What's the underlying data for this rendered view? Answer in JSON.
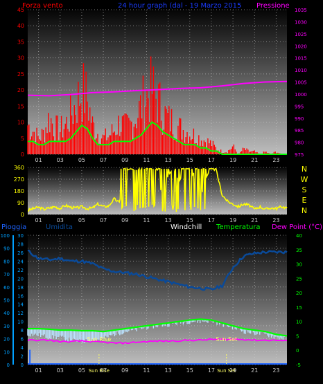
{
  "colors": {
    "wind": "#ff0000",
    "gust_fill": "#ff0000",
    "avg": "#00ff00",
    "pressure": "#ff00ff",
    "direction": "#ffff00",
    "rain": "#1e64ff",
    "humidity": "#0a4a99",
    "windchill": "#bbe3ff",
    "temperature": "#00ff00",
    "dewpoint": "#ff00ff",
    "sun": "#ffff66",
    "axis_left": "#00a0ff",
    "axis_right": "#00ff00"
  },
  "x_hours": [
    "01",
    "03",
    "05",
    "07",
    "09",
    "11",
    "13",
    "15",
    "17",
    "19",
    "21",
    "23"
  ],
  "header": {
    "left": "Forza vento",
    "center": "24 hour graph (dal - 19 Marzo 2015",
    "right": "Pressione"
  },
  "legend": {
    "pioggia": "Pioggia",
    "umidita": "Umidita",
    "windchill": "Windchill",
    "temperatura": "Temperatura",
    "dewpoint": "Dew Point (°C)"
  },
  "compass": [
    "N",
    "W",
    "S",
    "E",
    "N"
  ],
  "sun": {
    "rise_label": "Sun Rise",
    "set_label": "Sun Set",
    "rise_hour": 6.6,
    "set_hour": 18.4
  },
  "chart_data": [
    {
      "type": "bar",
      "name": "wind",
      "xlim": [
        0,
        24
      ],
      "ylim_left": [
        0,
        45
      ],
      "ylim_right": [
        975,
        1035
      ],
      "yticks_left": [
        0,
        5,
        10,
        15,
        20,
        25,
        30,
        35,
        40,
        45
      ],
      "yticks_right": [
        975,
        980,
        985,
        990,
        995,
        1000,
        1005,
        1010,
        1015,
        1020,
        1025,
        1030,
        1035
      ],
      "grid": true,
      "gust_hours": [
        0,
        0.5,
        1,
        1.5,
        2,
        2.5,
        3,
        3.5,
        4,
        4.5,
        5,
        5.5,
        6,
        6.5,
        7,
        7.5,
        8,
        8.5,
        9,
        9.5,
        10,
        10.5,
        11,
        11.5,
        12,
        12.5,
        13,
        13.5,
        14,
        14.5,
        15,
        15.5,
        16,
        16.5,
        17,
        17.5,
        18,
        18.5,
        19,
        19.5,
        20,
        20.5,
        21,
        21.5,
        22,
        22.5,
        23,
        23.5,
        24
      ],
      "gust_values": [
        11,
        9,
        6,
        8,
        14,
        10,
        9,
        11,
        15,
        19,
        24,
        21,
        11,
        8,
        6,
        7,
        9,
        12,
        10,
        11,
        14,
        18,
        22,
        24,
        21,
        16,
        13,
        12,
        10,
        9,
        8,
        7,
        6,
        5,
        4,
        2,
        1,
        1,
        3,
        0,
        2,
        1,
        1,
        0,
        1,
        0,
        1,
        0,
        0
      ],
      "avg_values": [
        4,
        4,
        3,
        3,
        4,
        4,
        4,
        4,
        5,
        7,
        9,
        8,
        5,
        3,
        3,
        3,
        4,
        4,
        4,
        4,
        5,
        6,
        8,
        10,
        9,
        7,
        6,
        5,
        4,
        3,
        3,
        3,
        2,
        2,
        1,
        1,
        0,
        0,
        0,
        0,
        0,
        0,
        0,
        0,
        0,
        0,
        0,
        0,
        0
      ],
      "pressure_hours": [
        0,
        2,
        4,
        6,
        8,
        10,
        12,
        14,
        16,
        18,
        20,
        22,
        24
      ],
      "pressure_values": [
        999.5,
        999.3,
        999.8,
        1000.6,
        1000.9,
        1001.4,
        1001.8,
        1002.3,
        1002.6,
        1003.4,
        1004.4,
        1005.0,
        1005.2
      ]
    },
    {
      "type": "line",
      "name": "wind-direction",
      "xlim": [
        0,
        24
      ],
      "ylim": [
        0,
        360
      ],
      "yticks": [
        0,
        90,
        180,
        270,
        360
      ],
      "grid": true,
      "x": [
        0,
        0.5,
        1,
        1.5,
        2,
        2.5,
        3,
        3.5,
        4,
        4.5,
        5,
        5.5,
        6,
        6.5,
        7,
        7.5,
        8,
        8.5,
        9,
        9.5,
        10,
        10.5,
        11,
        11.5,
        12,
        12.5,
        13,
        13.5,
        14,
        14.5,
        15,
        15.5,
        16,
        16.5,
        17,
        17.5,
        18,
        18.5,
        19,
        19.5,
        20,
        20.5,
        21,
        21.5,
        22,
        22.5,
        23,
        23.5,
        24
      ],
      "y": [
        30,
        45,
        55,
        40,
        50,
        60,
        45,
        70,
        55,
        50,
        60,
        45,
        50,
        80,
        60,
        65,
        120,
        90,
        330,
        350,
        340,
        340,
        350,
        345,
        340,
        100,
        300,
        350,
        250,
        330,
        260,
        340,
        120,
        280,
        360,
        320,
        150,
        100,
        80,
        60,
        80,
        70,
        40,
        60,
        40,
        50,
        45,
        60,
        50
      ]
    },
    {
      "type": "line",
      "name": "temperature",
      "xlim": [
        0,
        24
      ],
      "ylim_left": [
        0,
        100
      ],
      "ylim_right": [
        -5,
        40
      ],
      "yticks_left": [
        0,
        10,
        20,
        30,
        40,
        50,
        60,
        70,
        80,
        90,
        100
      ],
      "yticks_right": [
        -5,
        0,
        5,
        10,
        15,
        20,
        25,
        30,
        35,
        40
      ],
      "grid": true,
      "x": [
        0,
        1,
        2,
        3,
        4,
        5,
        6,
        7,
        8,
        9,
        10,
        11,
        12,
        13,
        14,
        15,
        16,
        17,
        18,
        19,
        20,
        21,
        22,
        23,
        24
      ],
      "rain_values": [
        0,
        0,
        0,
        0,
        0,
        0,
        0,
        0,
        0,
        0,
        0,
        0,
        0,
        0,
        0,
        0,
        0,
        0,
        0,
        0,
        0,
        0,
        0,
        0,
        0
      ],
      "humidity_values": [
        88,
        82,
        81,
        82,
        80,
        80,
        78,
        74,
        72,
        71,
        70,
        68,
        66,
        64,
        62,
        60,
        59,
        58,
        61,
        75,
        84,
        86,
        87,
        87,
        87
      ],
      "windchill_values": [
        5.5,
        5.3,
        4.5,
        4.5,
        3.5,
        3.0,
        3.5,
        4.0,
        5.5,
        6.5,
        7.0,
        8.0,
        8.5,
        9.0,
        9.5,
        10.0,
        10.0,
        10.2,
        9.0,
        8.0,
        6.5,
        6.0,
        5.5,
        4.5,
        4.0
      ],
      "temperature_values": [
        7.5,
        7.5,
        7.3,
        7.0,
        7.0,
        6.8,
        6.8,
        6.5,
        7.0,
        7.5,
        8.0,
        8.5,
        9.0,
        9.5,
        10.0,
        10.5,
        10.8,
        10.5,
        9.5,
        8.5,
        7.5,
        7.0,
        6.5,
        5.5,
        5.0
      ],
      "dewpoint_values": [
        3.5,
        3.5,
        3.5,
        3.0,
        3.0,
        3.2,
        3.0,
        2.8,
        2.5,
        2.5,
        2.8,
        3.0,
        3.2,
        3.2,
        3.3,
        3.5,
        3.5,
        3.8,
        3.8,
        3.8,
        3.8,
        3.5,
        3.5,
        3.5,
        3.2
      ],
      "rain_spike_hour": 0.2,
      "rain_spike_value": 11.5
    }
  ]
}
